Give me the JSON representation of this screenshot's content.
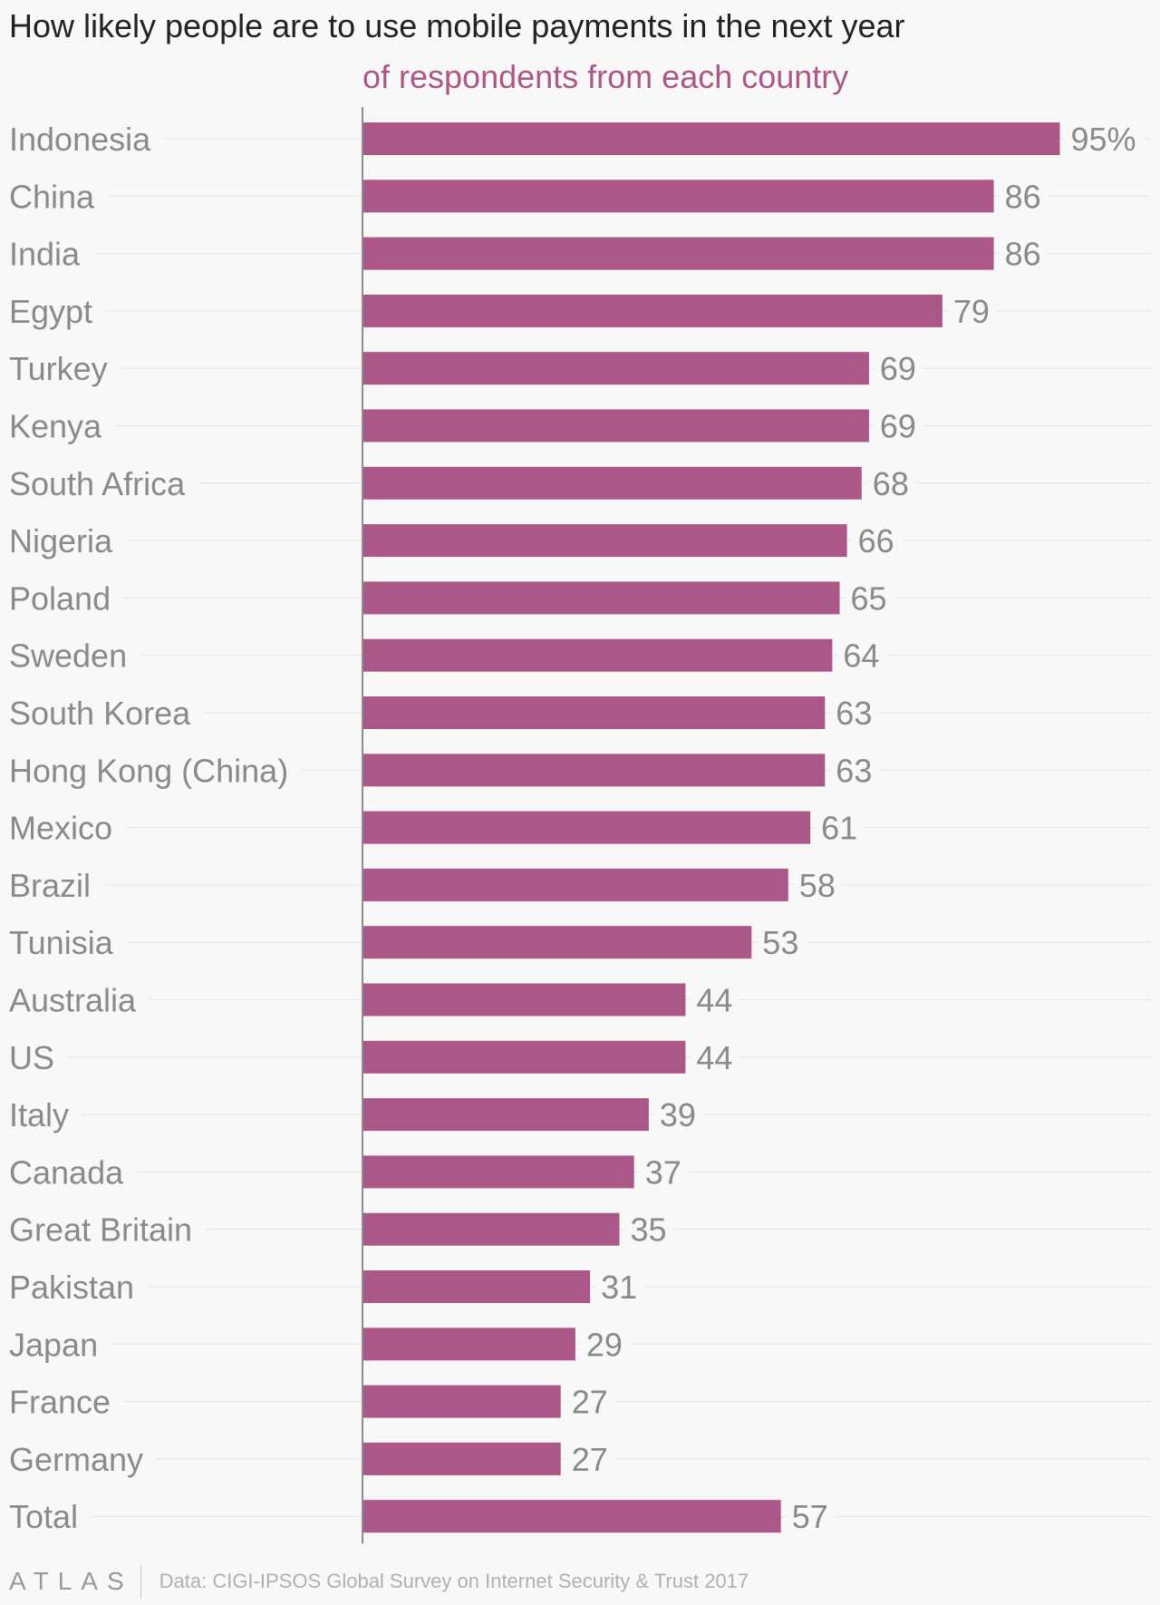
{
  "title": "How likely people are to use mobile payments in the next year",
  "subtitle": "of respondents from each country",
  "source": "Data: CIGI-IPSOS Global Survey on Internet Security & Trust 2017",
  "logo": "ATLAS",
  "colors": {
    "bar": "#ab5787",
    "label": "#8a8a8a",
    "value": "#8a8a8a",
    "grid": "#e3e3e3",
    "axis": "#8c8c8c",
    "title": "#222222",
    "subtitle": "#ab5787"
  },
  "chart_data": {
    "type": "bar",
    "orientation": "horizontal",
    "categories": [
      "Indonesia",
      "China",
      "India",
      "Egypt",
      "Turkey",
      "Kenya",
      "South Africa",
      "Nigeria",
      "Poland",
      "Sweden",
      "South Korea",
      "Hong Kong (China)",
      "Mexico",
      "Brazil",
      "Tunisia",
      "Australia",
      "US",
      "Italy",
      "Canada",
      "Great Britain",
      "Pakistan",
      "Japan",
      "France",
      "Germany",
      "Total"
    ],
    "values": [
      95,
      86,
      86,
      79,
      69,
      69,
      68,
      66,
      65,
      64,
      63,
      63,
      61,
      58,
      53,
      44,
      44,
      39,
      37,
      35,
      31,
      29,
      27,
      27,
      57
    ],
    "value_suffix_first": "%",
    "xlim": [
      0,
      100
    ],
    "grid": true
  }
}
